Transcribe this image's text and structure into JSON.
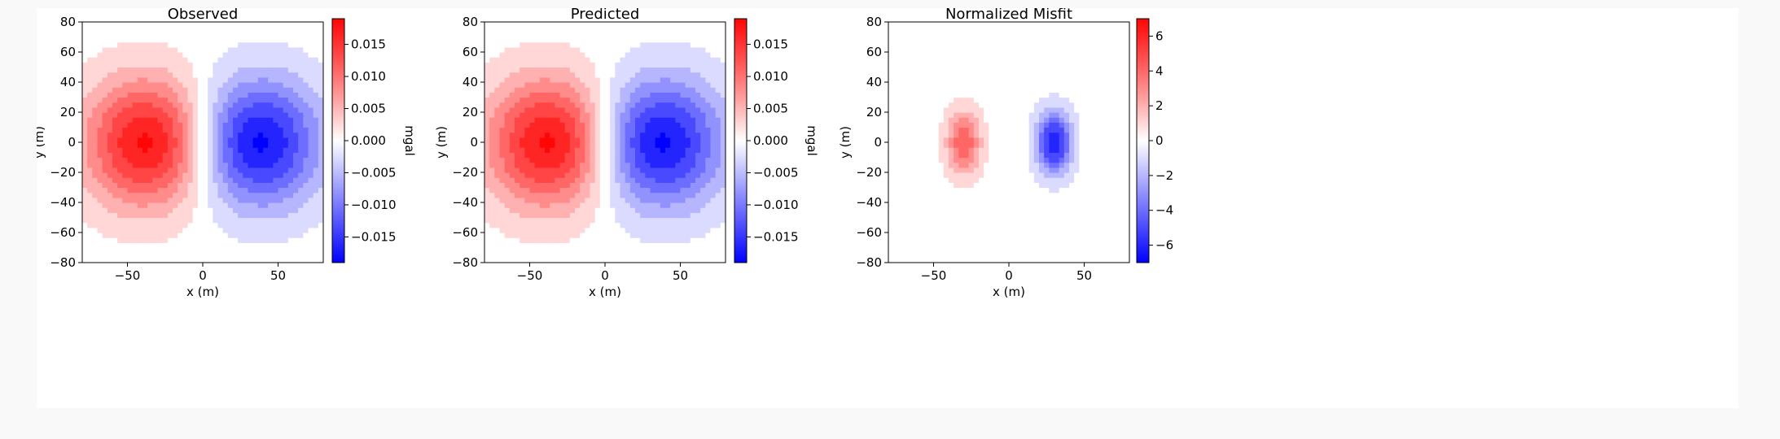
{
  "chart_data": [
    {
      "type": "heatmap",
      "title": "Observed",
      "xlabel": "x (m)",
      "ylabel": "y (m)",
      "xlim": [
        -80,
        80
      ],
      "ylim": [
        -80,
        80
      ],
      "xticks": [
        -50,
        0,
        50
      ],
      "yticks": [
        -80,
        -60,
        -40,
        -20,
        0,
        20,
        40,
        60,
        80
      ],
      "colorbar": {
        "label": "mgal",
        "range": [
          -0.019,
          0.019
        ],
        "ticks": [
          -0.015,
          -0.01,
          -0.005,
          0.0,
          0.005,
          0.01,
          0.015
        ],
        "tick_labels": [
          "−0.015",
          "−0.010",
          "−0.005",
          "0.000",
          "0.005",
          "0.010",
          "0.015"
        ]
      },
      "colormap": "bwr",
      "anomalies": [
        {
          "center": [
            -35,
            0
          ],
          "peak": 0.019
        },
        {
          "center": [
            35,
            0
          ],
          "peak": -0.019
        }
      ]
    },
    {
      "type": "heatmap",
      "title": "Predicted",
      "xlabel": "x (m)",
      "ylabel": "y (m)",
      "xlim": [
        -80,
        80
      ],
      "ylim": [
        -80,
        80
      ],
      "xticks": [
        -50,
        0,
        50
      ],
      "yticks": [
        -80,
        -60,
        -40,
        -20,
        0,
        20,
        40,
        60,
        80
      ],
      "colorbar": {
        "label": "mgal",
        "range": [
          -0.019,
          0.019
        ],
        "ticks": [
          -0.015,
          -0.01,
          -0.005,
          0.0,
          0.005,
          0.01,
          0.015
        ],
        "tick_labels": [
          "−0.015",
          "−0.010",
          "−0.005",
          "0.000",
          "0.005",
          "0.010",
          "0.015"
        ]
      },
      "colormap": "bwr",
      "anomalies": [
        {
          "center": [
            -35,
            0
          ],
          "peak": 0.019
        },
        {
          "center": [
            35,
            0
          ],
          "peak": -0.019
        }
      ]
    },
    {
      "type": "heatmap",
      "title": "Normalized Misfit",
      "xlabel": "x (m)",
      "ylabel": "y (m)",
      "xlim": [
        -80,
        80
      ],
      "ylim": [
        -80,
        80
      ],
      "xticks": [
        -50,
        0,
        50
      ],
      "yticks": [
        -80,
        -60,
        -40,
        -20,
        0,
        20,
        40,
        60,
        80
      ],
      "colorbar": {
        "label": "",
        "range": [
          -7,
          7
        ],
        "ticks": [
          -6,
          -4,
          -2,
          0,
          2,
          4,
          6
        ],
        "tick_labels": [
          "−6",
          "−4",
          "−2",
          "0",
          "2",
          "4",
          "6"
        ]
      },
      "colormap": "bwr",
      "anomalies": [
        {
          "center": [
            -30,
            0
          ],
          "peak": 4.5
        },
        {
          "center": [
            30,
            0
          ],
          "peak": -6.5
        }
      ]
    }
  ]
}
